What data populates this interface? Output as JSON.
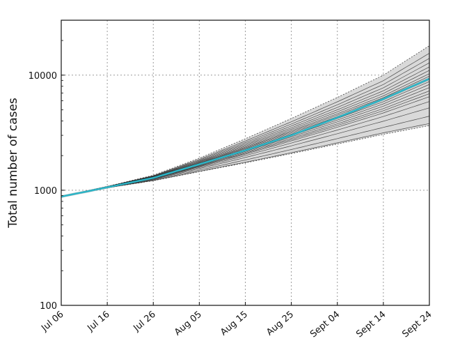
{
  "chart_data": {
    "type": "line",
    "title": "",
    "xlabel": "",
    "ylabel": "Total number of cases",
    "y_scale": "log",
    "ylim": [
      100,
      30000
    ],
    "xlim": [
      "Jul 06",
      "Sept 24"
    ],
    "grid": true,
    "grid_style": "dotted",
    "x_ticks": [
      "Jul 06",
      "Jul 16",
      "Jul 26",
      "Aug 05",
      "Aug 15",
      "Aug 25",
      "Sept 04",
      "Sept 14",
      "Sept 24"
    ],
    "y_ticks": [
      100,
      1000,
      10000
    ],
    "y_tick_labels": [
      "100",
      "1000",
      "10000"
    ],
    "colors": {
      "band_fill": "#d9d9d9",
      "band_edge": "#444444",
      "ensemble": "#1a1a1a",
      "mean": "#2cb6c8",
      "grid": "#9a9a9a"
    },
    "band": {
      "x": [
        "Jul 06",
        "Jul 16",
        "Jul 26",
        "Aug 05",
        "Aug 15",
        "Aug 25",
        "Sept 04",
        "Sept 14",
        "Sept 24"
      ],
      "lower": [
        880,
        1050,
        1210,
        1450,
        1730,
        2080,
        2520,
        3060,
        3650
      ],
      "upper": [
        880,
        1080,
        1350,
        1900,
        2800,
        4200,
        6400,
        10000,
        18000
      ]
    },
    "mean_series": {
      "x": [
        "Jul 06",
        "Jul 16",
        "Jul 26",
        "Aug 05",
        "Aug 15",
        "Aug 25",
        "Sept 04",
        "Sept 14",
        "Sept 24"
      ],
      "values": [
        880,
        1060,
        1280,
        1680,
        2220,
        3000,
        4280,
        6200,
        9300
      ]
    },
    "ensemble_series": [
      {
        "x": [
          "Jul 06",
          "Sept 24"
        ],
        "values": [
          880,
          3800
        ]
      },
      {
        "x": [
          "Jul 06",
          "Sept 24"
        ],
        "values": [
          880,
          4400
        ]
      },
      {
        "x": [
          "Jul 06",
          "Sept 24"
        ],
        "values": [
          880,
          5200
        ]
      },
      {
        "x": [
          "Jul 06",
          "Sept 24"
        ],
        "values": [
          880,
          5900
        ]
      },
      {
        "x": [
          "Jul 06",
          "Sept 24"
        ],
        "values": [
          880,
          6500
        ]
      },
      {
        "x": [
          "Jul 06",
          "Sept 24"
        ],
        "values": [
          880,
          6900
        ]
      },
      {
        "x": [
          "Jul 06",
          "Sept 24"
        ],
        "values": [
          880,
          7300
        ]
      },
      {
        "x": [
          "Jul 06",
          "Sept 24"
        ],
        "values": [
          880,
          7800
        ]
      },
      {
        "x": [
          "Jul 06",
          "Sept 24"
        ],
        "values": [
          880,
          8300
        ]
      },
      {
        "x": [
          "Jul 06",
          "Sept 24"
        ],
        "values": [
          880,
          8800
        ]
      },
      {
        "x": [
          "Jul 06",
          "Sept 24"
        ],
        "values": [
          880,
          9300
        ]
      },
      {
        "x": [
          "Jul 06",
          "Sept 24"
        ],
        "values": [
          880,
          9800
        ]
      },
      {
        "x": [
          "Jul 06",
          "Sept 24"
        ],
        "values": [
          880,
          10300
        ]
      },
      {
        "x": [
          "Jul 06",
          "Sept 24"
        ],
        "values": [
          880,
          11000
        ]
      },
      {
        "x": [
          "Jul 06",
          "Sept 24"
        ],
        "values": [
          880,
          11800
        ]
      },
      {
        "x": [
          "Jul 06",
          "Sept 24"
        ],
        "values": [
          880,
          12800
        ]
      },
      {
        "x": [
          "Jul 06",
          "Sept 24"
        ],
        "values": [
          880,
          14000
        ]
      },
      {
        "x": [
          "Jul 06",
          "Sept 24"
        ],
        "values": [
          880,
          15500
        ]
      }
    ]
  }
}
